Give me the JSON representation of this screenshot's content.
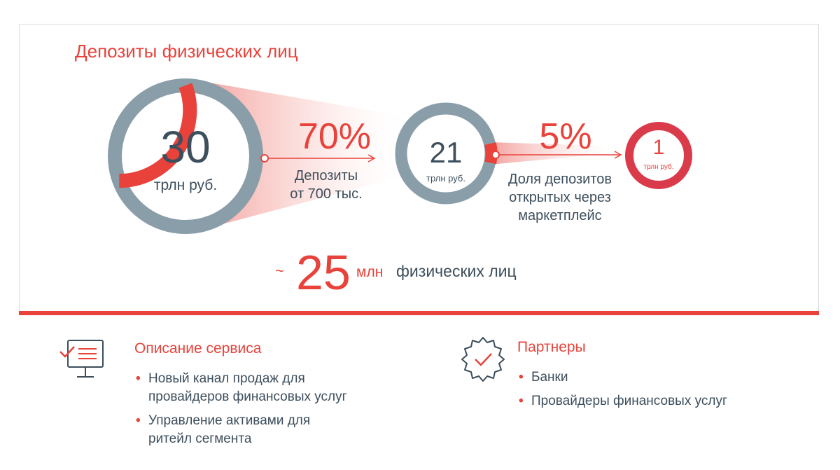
{
  "title": "Депозиты физических лиц",
  "circles": [
    {
      "value": "30",
      "unit": "трлн руб."
    },
    {
      "value": "21",
      "unit": "трлн руб."
    },
    {
      "value": "1",
      "unit": "трлн руб."
    }
  ],
  "conversions": [
    {
      "percent": "70%",
      "label_lines": [
        "Депозиты",
        "от 700 тыс."
      ]
    },
    {
      "percent": "5%",
      "label_lines": [
        "Доля депозитов",
        "открытых через",
        "маркетплейс"
      ]
    }
  ],
  "clients": {
    "prefix": "~",
    "value": "25",
    "unit": "млн",
    "label": "физических лиц"
  },
  "service": {
    "icon": "monitor-checklist-icon",
    "title": "Описание сервиса",
    "items": [
      {
        "lines": [
          "Новый канал продаж для",
          "провайдеров финансовых услуг"
        ]
      },
      {
        "lines": [
          "Управление активами для",
          "ритейл сегмента"
        ]
      }
    ]
  },
  "partners": {
    "icon": "badge-check-icon",
    "title": "Партнеры",
    "items": [
      {
        "lines": [
          "Банки"
        ]
      },
      {
        "lines": [
          "Провайдеры финансовых услуг"
        ]
      }
    ]
  },
  "colors": {
    "accent": "#e8423a",
    "ring_gray": "#8a9eaa",
    "text": "#3d4e5c",
    "small_ring": "#d93b4a"
  }
}
